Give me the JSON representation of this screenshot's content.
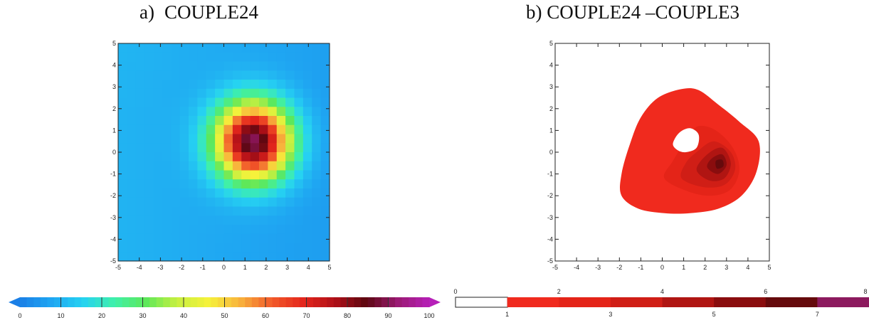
{
  "panels": [
    {
      "letter": "a)",
      "name": "COUPLE24"
    },
    {
      "letter": "b)",
      "name": "COUPLE24 –COUPLE3"
    }
  ],
  "chart_data": [
    {
      "type": "heatmap",
      "panel": "a",
      "title": "COUPLE24",
      "xlim": [
        -5,
        5
      ],
      "ylim": [
        -5,
        5
      ],
      "xticks": [
        -5,
        -4,
        -3,
        -2,
        -1,
        0,
        1,
        2,
        3,
        4,
        5
      ],
      "yticks": [
        -5,
        -4,
        -3,
        -2,
        -1,
        0,
        1,
        2,
        3,
        4,
        5
      ],
      "grid_cells": 24,
      "center": [
        1.4,
        0.5
      ],
      "peak_value": 93,
      "background_value": 10,
      "colorbar": {
        "ticks": [
          0,
          10,
          20,
          30,
          40,
          50,
          60,
          70,
          80,
          90,
          100
        ],
        "range": [
          0,
          100
        ],
        "colors": [
          "#1a7fe6",
          "#1fa6f2",
          "#26d2f2",
          "#3ff0aa",
          "#5de85a",
          "#c8f040",
          "#f6f23b",
          "#f8b23c",
          "#f25a2a",
          "#e4261c",
          "#b01018",
          "#5c0710",
          "#9a1a72",
          "#b620b8"
        ],
        "extend": "both"
      }
    },
    {
      "type": "contour",
      "panel": "b",
      "title": "COUPLE24 –COUPLE3",
      "xlim": [
        -5,
        5
      ],
      "ylim": [
        -5,
        5
      ],
      "xticks": [
        -5,
        -4,
        -3,
        -2,
        -1,
        0,
        1,
        2,
        3,
        4,
        5
      ],
      "yticks": [
        -5,
        -4,
        -3,
        -2,
        -1,
        0,
        1,
        2,
        3,
        4,
        5
      ],
      "levels": [
        {
          "value": 1,
          "color": "#f02a1e",
          "ring": [
            [
              -1.9,
              -1.0
            ],
            [
              -1.5,
              0.4
            ],
            [
              -1.0,
              1.6
            ],
            [
              -0.2,
              2.5
            ],
            [
              0.9,
              2.9
            ],
            [
              1.7,
              2.85
            ],
            [
              2.6,
              2.2
            ],
            [
              3.6,
              1.4
            ],
            [
              4.5,
              0.5
            ],
            [
              4.4,
              -0.9
            ],
            [
              3.7,
              -2.0
            ],
            [
              2.6,
              -2.6
            ],
            [
              1.3,
              -2.8
            ],
            [
              0.1,
              -2.8
            ],
            [
              -1.1,
              -2.6
            ],
            [
              -1.9,
              -2.0
            ]
          ]
        },
        {
          "value": 2,
          "color": "#e42418",
          "ring": [
            [
              1.2,
              0.7
            ],
            [
              1.7,
              1.2
            ],
            [
              2.5,
              1.0
            ],
            [
              3.3,
              0.2
            ],
            [
              3.6,
              -0.8
            ],
            [
              3.2,
              -1.7
            ],
            [
              2.3,
              -2.0
            ],
            [
              1.2,
              -1.8
            ],
            [
              0.1,
              -1.2
            ],
            [
              0.5,
              -0.4
            ]
          ]
        },
        {
          "value": 3,
          "color": "#d01e16",
          "ring": [
            [
              1.6,
              0.0
            ],
            [
              2.4,
              0.5
            ],
            [
              3.2,
              0.0
            ],
            [
              3.4,
              -0.8
            ],
            [
              2.9,
              -1.5
            ],
            [
              1.9,
              -1.6
            ],
            [
              0.9,
              -1.2
            ],
            [
              1.1,
              -0.5
            ]
          ]
        },
        {
          "value": 4,
          "color": "#b01512",
          "ring": [
            [
              2.1,
              -0.1
            ],
            [
              2.8,
              0.2
            ],
            [
              3.2,
              -0.5
            ],
            [
              2.9,
              -1.2
            ],
            [
              2.2,
              -1.3
            ],
            [
              1.6,
              -0.8
            ]
          ]
        },
        {
          "value": 5,
          "color": "#8a0d0e",
          "ring": [
            [
              2.3,
              -0.3
            ],
            [
              2.8,
              -0.1
            ],
            [
              3.0,
              -0.6
            ],
            [
              2.6,
              -1.0
            ],
            [
              2.1,
              -0.7
            ]
          ]
        },
        {
          "value": 6,
          "color": "#650a0c",
          "ring": [
            [
              2.5,
              -0.4
            ],
            [
              2.8,
              -0.35
            ],
            [
              2.85,
              -0.65
            ],
            [
              2.55,
              -0.75
            ]
          ]
        }
      ],
      "hole": {
        "value": 0,
        "ring": [
          [
            0.5,
            0.4
          ],
          [
            0.8,
            0.9
          ],
          [
            1.3,
            1.1
          ],
          [
            1.7,
            0.8
          ],
          [
            1.6,
            0.2
          ],
          [
            1.1,
            0.0
          ],
          [
            0.7,
            0.1
          ]
        ]
      },
      "colorbar": {
        "ticks_top": [
          0,
          2,
          4,
          6,
          8
        ],
        "ticks_bottom": [
          1,
          3,
          5,
          7
        ],
        "range": [
          0,
          8
        ],
        "bins": [
          {
            "from": 0,
            "to": 1,
            "color": "#ffffff"
          },
          {
            "from": 1,
            "to": 2,
            "color": "#f02a1e"
          },
          {
            "from": 2,
            "to": 3,
            "color": "#e42418"
          },
          {
            "from": 3,
            "to": 4,
            "color": "#d01e16"
          },
          {
            "from": 4,
            "to": 5,
            "color": "#b01512"
          },
          {
            "from": 5,
            "to": 6,
            "color": "#8a0d0e"
          },
          {
            "from": 6,
            "to": 7,
            "color": "#650a0c"
          },
          {
            "from": 7,
            "to": 8,
            "color": "#8c1a5e"
          }
        ]
      }
    }
  ]
}
